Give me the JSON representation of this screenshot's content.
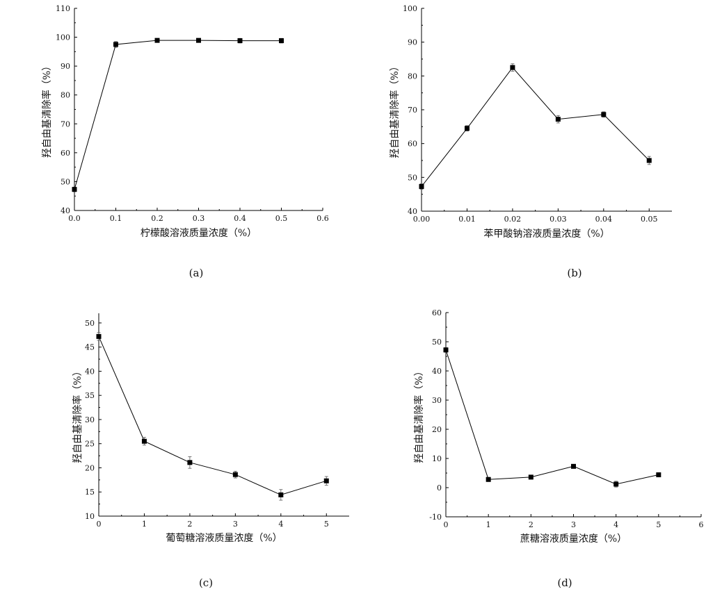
{
  "chart_data": [
    {
      "id": "a",
      "type": "line",
      "panel_label": "(a)",
      "title": "",
      "xlabel": "柠檬酸溶液质量浓度（%）",
      "ylabel": "羟自由基清除率（%）",
      "xlim": [
        0,
        0.6
      ],
      "ylim": [
        40,
        110
      ],
      "xticks": [
        0,
        0.1,
        0.2,
        0.3,
        0.4,
        0.5,
        0.6
      ],
      "xtick_labels": [
        "0.0",
        "0.1",
        "0.2",
        "0.3",
        "0.4",
        "0.5",
        "0.6"
      ],
      "yticks": [
        40,
        50,
        60,
        70,
        80,
        90,
        100,
        110
      ],
      "ytick_labels": [
        "40",
        "50",
        "60",
        "70",
        "80",
        "90",
        "100",
        "110"
      ],
      "x": [
        0,
        0.1,
        0.2,
        0.3,
        0.4,
        0.5
      ],
      "series": [
        {
          "values": [
            47.3,
            97.5,
            98.9,
            98.9,
            98.8,
            98.8
          ],
          "errors": [
            0.8,
            1.0,
            0.6,
            0.6,
            0.8,
            0.8
          ]
        }
      ],
      "grid": false,
      "legend": "none"
    },
    {
      "id": "b",
      "type": "line",
      "panel_label": "(b)",
      "title": "",
      "xlabel": "苯甲酸钠溶液质量浓度（%）",
      "ylabel": "羟自由基清除率（%）",
      "xlim": [
        0,
        0.055
      ],
      "ylim": [
        40,
        100
      ],
      "xticks": [
        0,
        0.01,
        0.02,
        0.03,
        0.04,
        0.05
      ],
      "xtick_labels": [
        "0.00",
        "0.01",
        "0.02",
        "0.03",
        "0.04",
        "0.05"
      ],
      "yticks": [
        40,
        50,
        60,
        70,
        80,
        90,
        100
      ],
      "ytick_labels": [
        "40",
        "50",
        "60",
        "70",
        "80",
        "90",
        "100"
      ],
      "x": [
        0,
        0.01,
        0.02,
        0.03,
        0.04,
        0.05
      ],
      "series": [
        {
          "values": [
            47.3,
            64.5,
            82.5,
            67.2,
            68.6,
            55.0
          ],
          "errors": [
            0.8,
            0.8,
            1.1,
            1.1,
            0.8,
            1.2
          ]
        }
      ],
      "grid": false,
      "legend": "none"
    },
    {
      "id": "c",
      "type": "line",
      "panel_label": "(c)",
      "title": "",
      "xlabel": "葡萄糖溶液质量浓度（%）",
      "ylabel": "羟自由基清除率（%）",
      "xlim": [
        0,
        5.5
      ],
      "ylim": [
        10,
        52
      ],
      "xticks": [
        0,
        1,
        2,
        3,
        4,
        5
      ],
      "xtick_labels": [
        "0",
        "1",
        "2",
        "3",
        "4",
        "5"
      ],
      "yticks": [
        10,
        15,
        20,
        25,
        30,
        35,
        40,
        45,
        50
      ],
      "ytick_labels": [
        "10",
        "15",
        "20",
        "25",
        "30",
        "35",
        "40",
        "45",
        "50"
      ],
      "x": [
        0,
        1,
        2,
        3,
        4,
        5
      ],
      "series": [
        {
          "values": [
            47.2,
            25.5,
            21.1,
            18.6,
            14.4,
            17.3
          ],
          "errors": [
            0.8,
            0.8,
            1.2,
            0.7,
            1.1,
            0.9
          ]
        }
      ],
      "grid": false,
      "legend": "none"
    },
    {
      "id": "d",
      "type": "line",
      "panel_label": "(d)",
      "title": "",
      "xlabel": "蔗糖溶液质量浓度（%）",
      "ylabel": "羟自由基清除率（%）",
      "xlim": [
        0,
        6
      ],
      "ylim": [
        -10,
        60
      ],
      "xticks": [
        0,
        1,
        2,
        3,
        4,
        5,
        6
      ],
      "xtick_labels": [
        "0",
        "1",
        "2",
        "3",
        "4",
        "5",
        "6"
      ],
      "yticks": [
        -10,
        0,
        10,
        20,
        30,
        40,
        50,
        60
      ],
      "ytick_labels": [
        "-10",
        "0",
        "10",
        "20",
        "30",
        "40",
        "50",
        "60"
      ],
      "x": [
        0,
        1,
        2,
        3,
        4,
        5
      ],
      "series": [
        {
          "values": [
            47.2,
            2.8,
            3.6,
            7.3,
            1.2,
            4.4
          ],
          "errors": [
            0.8,
            0.7,
            0.6,
            0.6,
            1.0,
            0.6
          ]
        }
      ],
      "grid": false,
      "legend": "none"
    }
  ]
}
